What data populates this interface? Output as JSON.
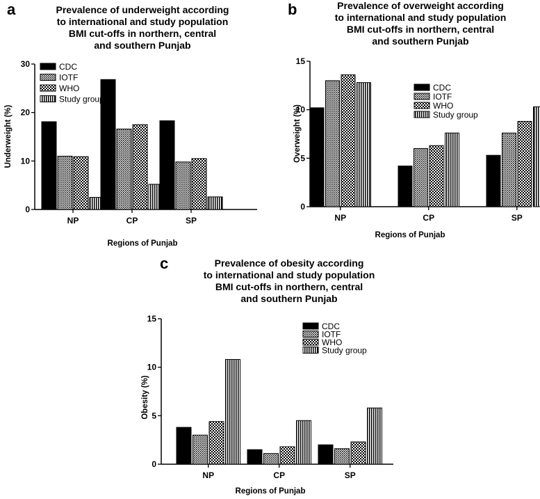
{
  "colors": {
    "text": "#000000",
    "background": "#ffffff"
  },
  "chart_data": [
    {
      "panel": "a",
      "type": "bar",
      "title": "Prevalence of underweight according to international and study population BMI cut-offs in northern, central and southern Punjab",
      "title_lines": [
        "Prevalence of underweight according",
        "to international and study population",
        "BMI cut-offs in northern, central",
        "and southern Punjab"
      ],
      "xlabel": "Regions of Punjab",
      "ylabel": "Underweight (%)",
      "categories": [
        "NP",
        "CP",
        "SP"
      ],
      "ylim": [
        0,
        30
      ],
      "yticks": [
        0,
        10,
        20,
        30
      ],
      "legend_position": "top-right",
      "series": [
        {
          "name": "CDC",
          "pattern": "solid",
          "values": [
            18.1,
            26.8,
            18.3
          ]
        },
        {
          "name": "IOTF",
          "pattern": "dots",
          "values": [
            11.0,
            16.6,
            9.8
          ]
        },
        {
          "name": "WHO",
          "pattern": "checker",
          "values": [
            10.9,
            17.5,
            10.5
          ]
        },
        {
          "name": "Study group",
          "pattern": "vlines",
          "values": [
            2.5,
            5.2,
            2.6
          ]
        }
      ]
    },
    {
      "panel": "b",
      "type": "bar",
      "title": "Prevalence of overweight according to international and study population BMI cut-offs in northern, central and southern Punjab",
      "title_lines": [
        "Prevalence of overweight according",
        "to international and study population",
        "BMI cut-offs in northern, central",
        "and southern Punjab"
      ],
      "xlabel": "Regions of Punjab",
      "ylabel": "Overweight (%)",
      "categories": [
        "NP",
        "CP",
        "SP"
      ],
      "ylim": [
        0,
        15
      ],
      "yticks": [
        0,
        5,
        10,
        15
      ],
      "legend_position": "top-right",
      "series": [
        {
          "name": "CDC",
          "pattern": "solid",
          "values": [
            10.2,
            4.2,
            5.3
          ]
        },
        {
          "name": "IOTF",
          "pattern": "dots",
          "values": [
            13.0,
            6.0,
            7.6
          ]
        },
        {
          "name": "WHO",
          "pattern": "checker",
          "values": [
            13.6,
            6.3,
            8.8
          ]
        },
        {
          "name": "Study group",
          "pattern": "vlines",
          "values": [
            12.8,
            7.6,
            10.3
          ]
        }
      ]
    },
    {
      "panel": "c",
      "type": "bar",
      "title": "Prevalence of obesity according to international and study population BMI cut-offs in northern, central and southern Punjab",
      "title_lines": [
        "Prevalence of obesity according",
        "to international and study population",
        "BMI cut-offs in northern, central",
        "and southern Punjab"
      ],
      "xlabel": "Regions of Punjab",
      "ylabel": "Obesity (%)",
      "categories": [
        "NP",
        "CP",
        "SP"
      ],
      "ylim": [
        0,
        15
      ],
      "yticks": [
        0,
        5,
        10,
        15
      ],
      "legend_position": "top-right",
      "series": [
        {
          "name": "CDC",
          "pattern": "solid",
          "values": [
            3.8,
            1.5,
            2.0
          ]
        },
        {
          "name": "IOTF",
          "pattern": "dots",
          "values": [
            3.0,
            1.1,
            1.6
          ]
        },
        {
          "name": "WHO",
          "pattern": "checker",
          "values": [
            4.4,
            1.8,
            2.3
          ]
        },
        {
          "name": "Study group",
          "pattern": "vlines",
          "values": [
            10.8,
            4.5,
            5.8
          ]
        }
      ]
    }
  ]
}
